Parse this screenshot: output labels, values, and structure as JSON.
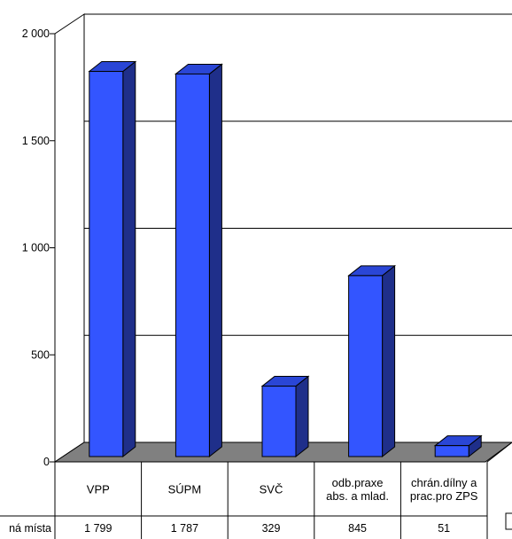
{
  "chart_data": {
    "type": "bar",
    "title": "",
    "xlabel": "",
    "ylabel": "",
    "ylim": [
      0,
      2000
    ],
    "yticks": [
      "0",
      "500",
      "1 000",
      "1 500",
      "2 000"
    ],
    "ytick_values": [
      0,
      500,
      1000,
      1500,
      2000
    ],
    "grid": true,
    "three_d": true,
    "categories": [
      [
        "VPP"
      ],
      [
        "SÚPM"
      ],
      [
        "SVČ"
      ],
      [
        "odb.praxe",
        "abs. a mlad."
      ],
      [
        "chrán.dílny a",
        "prac.pro ZPS"
      ]
    ],
    "series": [
      {
        "name": "ná místa",
        "values": [
          1799,
          1787,
          329,
          845,
          51
        ],
        "value_labels": [
          "1 799",
          "1 787",
          "329",
          "845",
          "51"
        ],
        "color": "#3355ff",
        "side_color": "#1f2f8a",
        "top_color": "#2a46d6"
      }
    ],
    "floor_color": "#808080",
    "data_table": true
  }
}
